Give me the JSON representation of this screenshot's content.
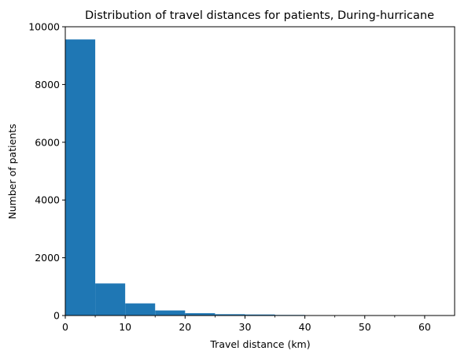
{
  "chart_data": {
    "type": "bar",
    "title": "Distribution of travel distances for patients, During-hurricane",
    "xlabel": "Travel distance (km)",
    "ylabel": "Number of patients",
    "xlim": [
      0,
      65
    ],
    "ylim": [
      0,
      10000
    ],
    "x_ticks": [
      0,
      10,
      20,
      30,
      40,
      50,
      60
    ],
    "x_minor_ticks": [
      5,
      15,
      25,
      35,
      45,
      55
    ],
    "y_ticks": [
      0,
      2000,
      4000,
      6000,
      8000,
      10000
    ],
    "bin_edges": [
      0,
      5,
      10,
      15,
      20,
      25,
      30,
      35,
      40,
      45,
      50,
      55
    ],
    "values": [
      9560,
      1110,
      420,
      175,
      80,
      45,
      35,
      20,
      12,
      8,
      5
    ],
    "bar_color": "#1f77b4",
    "grid": false
  }
}
